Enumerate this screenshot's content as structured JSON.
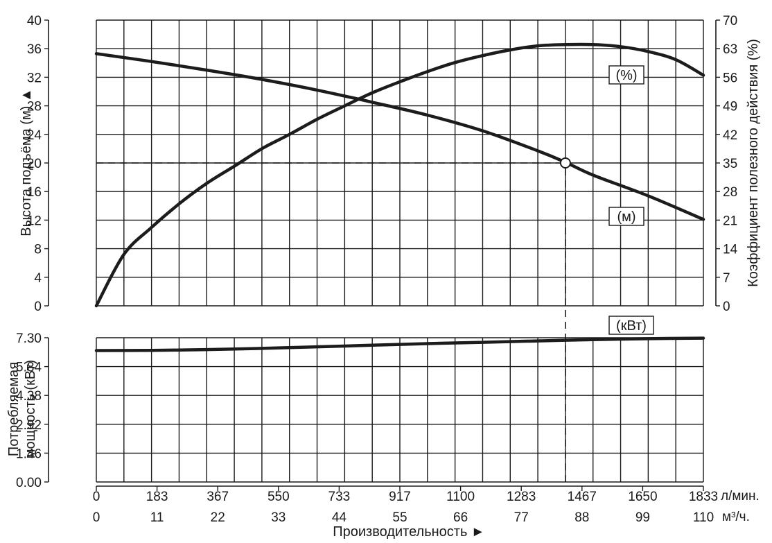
{
  "chart_data": {
    "type": "line",
    "title": "",
    "xlabel": "Производительность ►",
    "x_unit_primary": "л/мин.",
    "x_unit_secondary": "м³/ч.",
    "x_ticks_primary": [
      "0",
      "183",
      "367",
      "550",
      "733",
      "917",
      "1100",
      "1283",
      "1467",
      "1650",
      "1833"
    ],
    "x_ticks_secondary": [
      "0",
      "11",
      "22",
      "33",
      "44",
      "55",
      "66",
      "77",
      "88",
      "99",
      "110"
    ],
    "xlim": [
      0,
      110
    ],
    "grid": true,
    "upper_panel": {
      "ylabel_left": "Высота подъёма (м) ▲",
      "ylabel_right": "Коэффициент полезного действия (%)",
      "ylim_left": [
        0,
        40
      ],
      "ylim_right": [
        0,
        70
      ],
      "y_ticks_left": [
        "0",
        "4",
        "8",
        "12",
        "16",
        "20",
        "24",
        "28",
        "32",
        "36",
        "40"
      ],
      "y_ticks_right": [
        "0",
        "7",
        "14",
        "21",
        "28",
        "35",
        "42",
        "49",
        "56",
        "63",
        "70"
      ],
      "series": [
        {
          "name": "(м)",
          "axis": "left",
          "x": [
            0,
            10,
            20,
            30,
            40,
            50,
            60,
            70,
            80,
            85,
            90,
            100,
            110
          ],
          "values": [
            35.3,
            34.2,
            33.0,
            31.7,
            30.2,
            28.5,
            26.7,
            24.5,
            21.7,
            20.1,
            18.3,
            15.4,
            12.1
          ]
        },
        {
          "name": "(%)",
          "axis": "right",
          "x": [
            0,
            5,
            10,
            15,
            20,
            25,
            30,
            35,
            40,
            45,
            50,
            55,
            60,
            65,
            70,
            75,
            80,
            85,
            90,
            95,
            100,
            105,
            110
          ],
          "values": [
            0,
            12.6,
            19.2,
            25.0,
            30.0,
            34.2,
            38.5,
            42.0,
            45.7,
            49.0,
            52.2,
            54.9,
            57.4,
            59.6,
            61.3,
            62.7,
            63.7,
            64.0,
            64.0,
            63.5,
            62.3,
            60.3,
            56.5
          ]
        }
      ],
      "operating_point": {
        "x": 85,
        "head": 20
      }
    },
    "lower_panel": {
      "ylabel": "Потребляемая мощность (кВт)",
      "ylim": [
        0,
        7.3
      ],
      "y_ticks": [
        "0.00",
        "1.46",
        "2.92",
        "4.38",
        "5.84",
        "7.30"
      ],
      "series": [
        {
          "name": "(кВт)",
          "x": [
            0,
            10,
            20,
            30,
            40,
            50,
            60,
            70,
            80,
            90,
            100,
            110
          ],
          "values": [
            6.65,
            6.66,
            6.7,
            6.76,
            6.84,
            6.92,
            7.0,
            7.07,
            7.14,
            7.2,
            7.25,
            7.28
          ]
        }
      ]
    }
  }
}
